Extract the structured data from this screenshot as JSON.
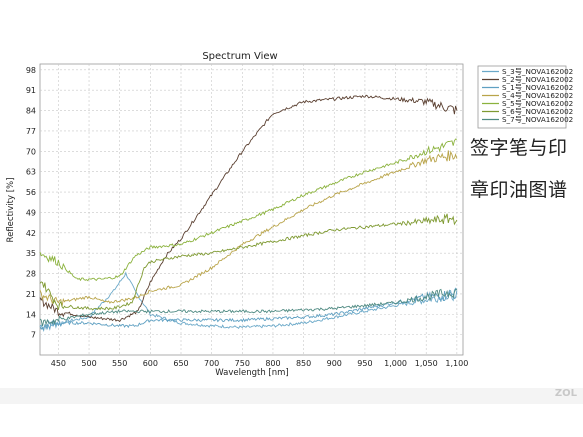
{
  "chart_data": {
    "type": "line",
    "title": "Spectrum View",
    "xlabel": "Wavelength [nm]",
    "ylabel": "Reflectivity [%]",
    "xlim": [
      420,
      1110
    ],
    "ylim": [
      0,
      100
    ],
    "x_ticks": [
      450,
      500,
      550,
      600,
      650,
      700,
      750,
      800,
      850,
      900,
      950,
      1000,
      1050,
      1100
    ],
    "x_tick_labels": [
      "450",
      "500",
      "550",
      "600",
      "650",
      "700",
      "750",
      "800",
      "850",
      "900",
      "950",
      "1,000",
      "1,050",
      "1,100"
    ],
    "y_ticks": [
      7,
      14,
      21,
      28,
      35,
      42,
      49,
      56,
      63,
      70,
      77,
      84,
      91,
      98
    ],
    "grid": true,
    "legend_position": "right",
    "series": [
      {
        "name": "S_3号_NOVA162002",
        "color": "#6aa8c8",
        "points": [
          [
            420,
            10
          ],
          [
            450,
            11
          ],
          [
            500,
            13
          ],
          [
            540,
            22
          ],
          [
            560,
            28
          ],
          [
            575,
            22
          ],
          [
            600,
            14
          ],
          [
            650,
            11
          ],
          [
            700,
            10
          ],
          [
            750,
            9.5
          ],
          [
            800,
            10
          ],
          [
            850,
            11
          ],
          [
            900,
            13
          ],
          [
            950,
            15
          ],
          [
            1000,
            17
          ],
          [
            1050,
            19
          ],
          [
            1100,
            21
          ]
        ]
      },
      {
        "name": "S_2号_NOVA162002",
        "color": "#5a3f30",
        "points": [
          [
            420,
            19
          ],
          [
            450,
            15
          ],
          [
            500,
            13
          ],
          [
            550,
            12
          ],
          [
            580,
            15
          ],
          [
            600,
            25
          ],
          [
            625,
            34
          ],
          [
            650,
            40
          ],
          [
            700,
            55
          ],
          [
            750,
            70
          ],
          [
            800,
            83
          ],
          [
            850,
            87
          ],
          [
            900,
            88
          ],
          [
            950,
            89
          ],
          [
            1000,
            88
          ],
          [
            1050,
            87
          ],
          [
            1100,
            84
          ]
        ]
      },
      {
        "name": "S_1号_NOVA162002",
        "color": "#5fa0c2",
        "points": [
          [
            420,
            9
          ],
          [
            450,
            11
          ],
          [
            500,
            11
          ],
          [
            550,
            10
          ],
          [
            575,
            10
          ],
          [
            600,
            12
          ],
          [
            650,
            12
          ],
          [
            700,
            12
          ],
          [
            750,
            12
          ],
          [
            800,
            12.5
          ],
          [
            850,
            13
          ],
          [
            900,
            14
          ],
          [
            950,
            16
          ],
          [
            1000,
            18
          ],
          [
            1050,
            20
          ],
          [
            1100,
            21
          ]
        ]
      },
      {
        "name": "S_4号_NOVA162002",
        "color": "#b9a44a",
        "points": [
          [
            420,
            21
          ],
          [
            450,
            18
          ],
          [
            500,
            20
          ],
          [
            530,
            18
          ],
          [
            560,
            19
          ],
          [
            580,
            20
          ],
          [
            600,
            22
          ],
          [
            650,
            24
          ],
          [
            700,
            30
          ],
          [
            750,
            38
          ],
          [
            800,
            44
          ],
          [
            850,
            50
          ],
          [
            900,
            55
          ],
          [
            950,
            59
          ],
          [
            1000,
            63
          ],
          [
            1050,
            67
          ],
          [
            1100,
            69
          ]
        ]
      },
      {
        "name": "S_5号_NOVA162002",
        "color": "#8bb23d",
        "points": [
          [
            420,
            35
          ],
          [
            450,
            32
          ],
          [
            480,
            26
          ],
          [
            520,
            26
          ],
          [
            550,
            27
          ],
          [
            575,
            34
          ],
          [
            600,
            37
          ],
          [
            650,
            38
          ],
          [
            700,
            42
          ],
          [
            750,
            46
          ],
          [
            800,
            50
          ],
          [
            850,
            55
          ],
          [
            900,
            59
          ],
          [
            950,
            63
          ],
          [
            1000,
            66
          ],
          [
            1050,
            70
          ],
          [
            1100,
            73
          ]
        ]
      },
      {
        "name": "S_6号_NOVA162002",
        "color": "#7f9a32",
        "points": [
          [
            420,
            26
          ],
          [
            450,
            17
          ],
          [
            500,
            16
          ],
          [
            540,
            16
          ],
          [
            570,
            18
          ],
          [
            590,
            30
          ],
          [
            600,
            32
          ],
          [
            650,
            34
          ],
          [
            700,
            35
          ],
          [
            750,
            37
          ],
          [
            800,
            39
          ],
          [
            850,
            41
          ],
          [
            900,
            43
          ],
          [
            950,
            44
          ],
          [
            1000,
            45
          ],
          [
            1050,
            46
          ],
          [
            1100,
            47
          ]
        ]
      },
      {
        "name": "S_7号_NOVA162002",
        "color": "#4f8a82",
        "points": [
          [
            420,
            11
          ],
          [
            450,
            12
          ],
          [
            500,
            14
          ],
          [
            550,
            15
          ],
          [
            600,
            15
          ],
          [
            650,
            15
          ],
          [
            700,
            15
          ],
          [
            750,
            15
          ],
          [
            800,
            15
          ],
          [
            850,
            15.5
          ],
          [
            900,
            16
          ],
          [
            950,
            17
          ],
          [
            1000,
            18
          ],
          [
            1050,
            20
          ],
          [
            1100,
            22
          ]
        ]
      }
    ]
  },
  "caption": {
    "line_1": "签字笔与印",
    "line_2": "章印油图谱"
  },
  "watermark": "ZOL"
}
